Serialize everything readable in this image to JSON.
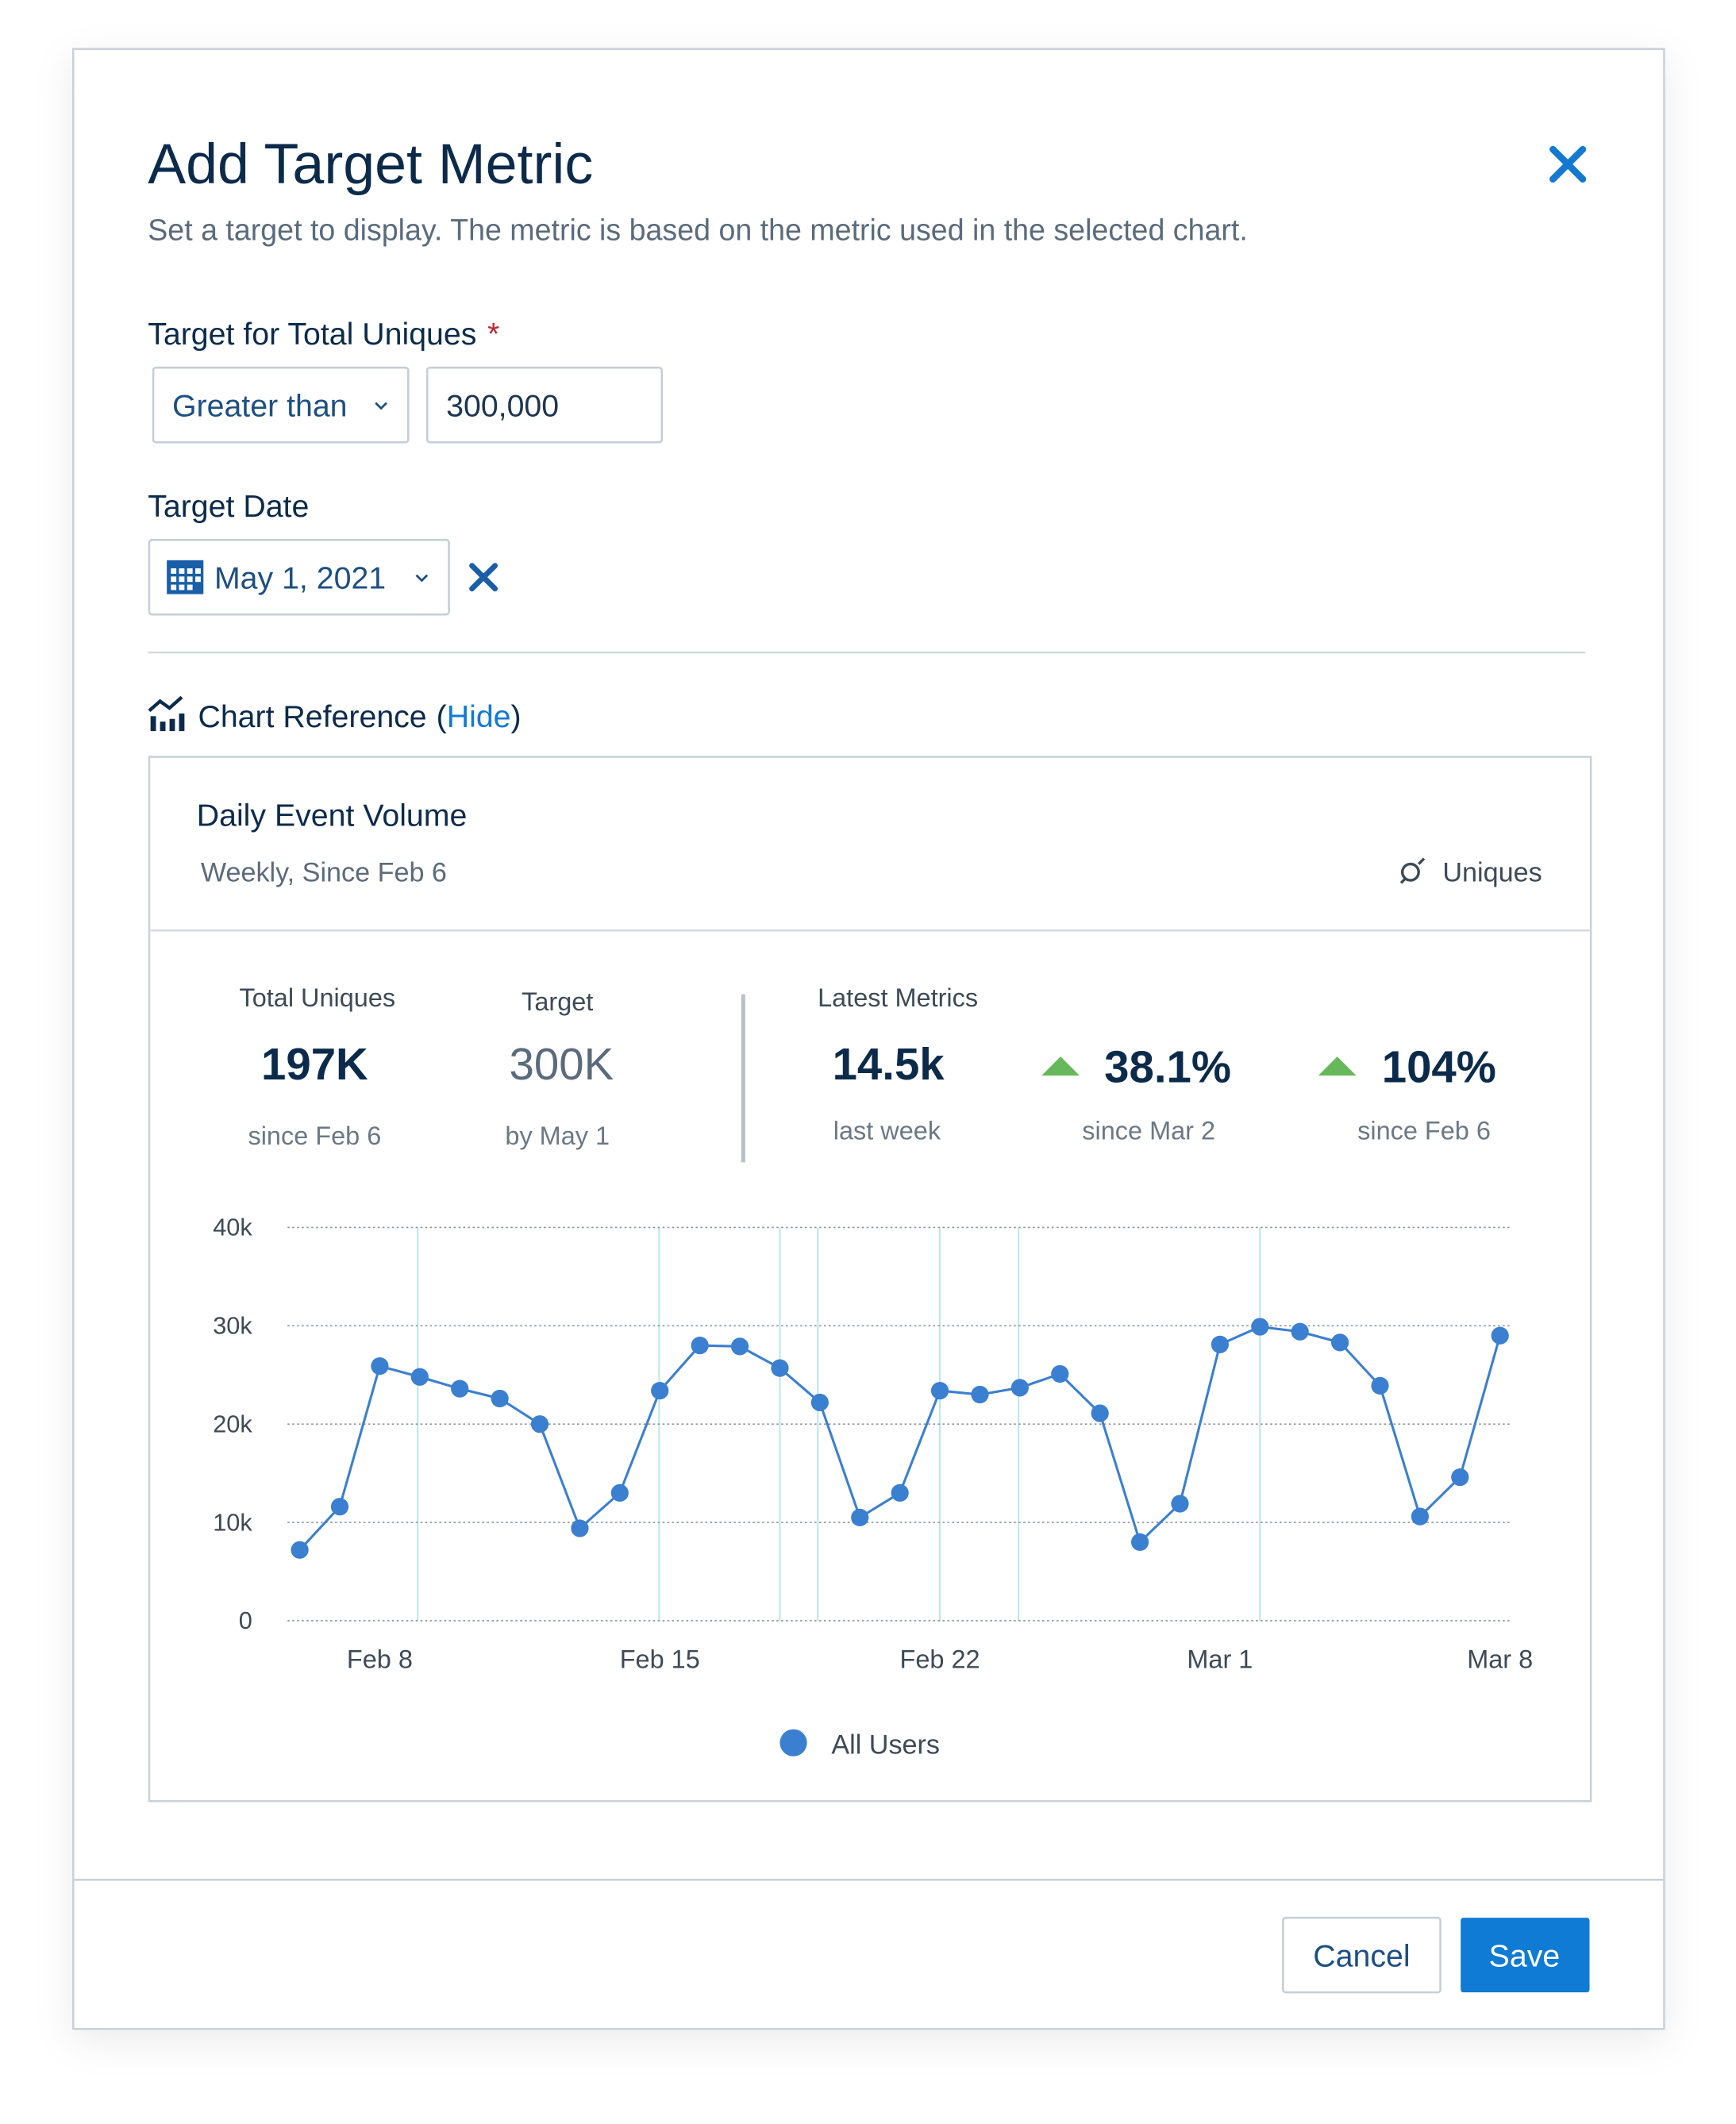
{
  "dialog": {
    "title": "Add Target Metric",
    "subtitle": "Set a target to display. The metric is based on the metric used in the selected chart.",
    "target_label": "Target for Total Uniques",
    "required_mark": "*",
    "comparison": "Greater than",
    "target_value": "300,000",
    "date_label": "Target Date",
    "date_value": "May 1, 2021",
    "reference": {
      "label": "Chart Reference",
      "open": "(",
      "link": "Hide",
      "close": ")"
    },
    "buttons": {
      "cancel": "Cancel",
      "save": "Save"
    }
  },
  "card": {
    "title": "Daily Event Volume",
    "subtitle": "Weekly, Since Feb 6",
    "metric": "Uniques",
    "stats": [
      {
        "label": "Total Uniques",
        "value": "197K",
        "note": "since Feb 6"
      },
      {
        "label": "Target",
        "value": "300K",
        "note": "by May 1"
      }
    ],
    "latest": {
      "heading": "Latest Metrics",
      "items": [
        {
          "value": "14.5k",
          "note": "last week"
        },
        {
          "value": "38.1%",
          "note": "since Mar 2"
        },
        {
          "value": "104%",
          "note": "since Feb 6"
        }
      ]
    }
  },
  "chart_data": {
    "type": "line",
    "categories": [
      null,
      null,
      "Feb 8",
      null,
      null,
      null,
      null,
      null,
      null,
      "Feb 15",
      null,
      null,
      null,
      null,
      null,
      null,
      "Feb 22",
      null,
      null,
      null,
      null,
      null,
      null,
      "Mar 1",
      null,
      null,
      null,
      null,
      null,
      null,
      "Mar 8"
    ],
    "series": [
      {
        "name": "All Users",
        "color": "#3b7fd0",
        "values": [
          7200,
          11600,
          25900,
          24800,
          23600,
          22600,
          20000,
          9400,
          13000,
          23400,
          28000,
          27900,
          25700,
          22200,
          10500,
          13000,
          23400,
          23000,
          23700,
          25100,
          21100,
          8000,
          11900,
          28100,
          29900,
          29400,
          28300,
          23900,
          10600,
          14600,
          29000
        ]
      }
    ],
    "ylim": [
      0,
      40000
    ],
    "yticks": [
      0,
      {
        "value": 10000,
        "label": "10k"
      },
      {
        "value": 20000,
        "label": "20k"
      },
      {
        "value": 30000,
        "label": "30k"
      },
      {
        "value": 40000,
        "label": "40k"
      }
    ],
    "grid": true,
    "legend": "bottom"
  }
}
